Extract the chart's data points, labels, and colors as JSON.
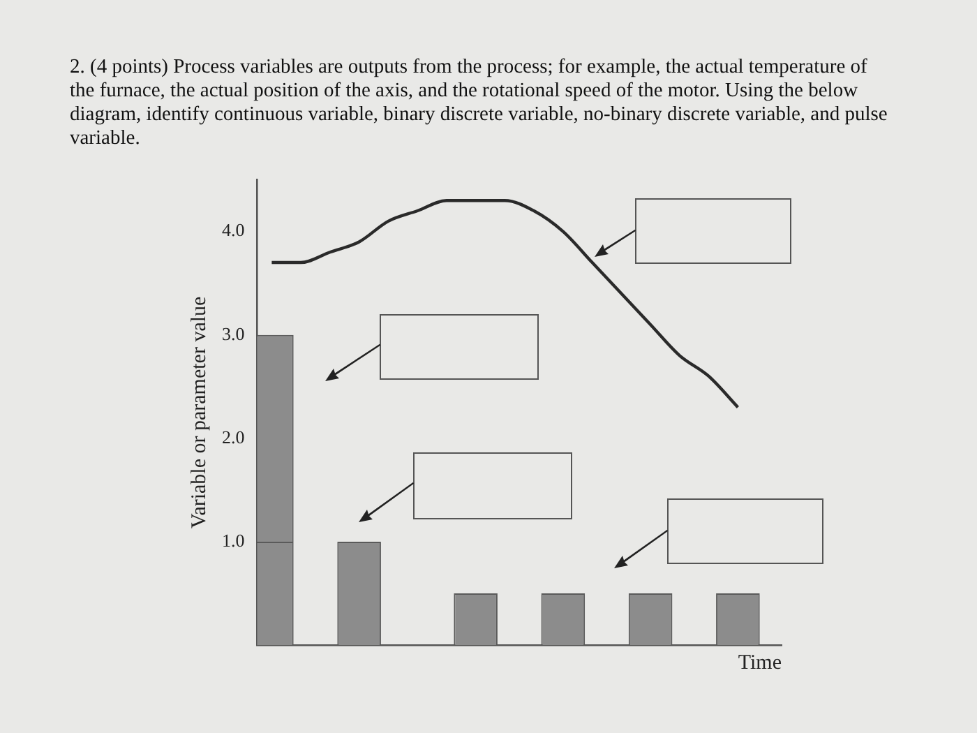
{
  "chart_data": {
    "type": "bar",
    "title": "2. (4 points) Process variables are outputs from the process; for example, the actual temperature of the furnace, the actual position of the axis, and the rotational speed of the motor. Using the below diagram, identify continuous variable, binary discrete variable, no-binary discrete variable, and pulse variable.",
    "xlabel": "Time",
    "ylabel": "Variable or parameter value",
    "categories": [
      null,
      null,
      null,
      null,
      null,
      null,
      null,
      null,
      null,
      null,
      null,
      null,
      null,
      null,
      null,
      null,
      null,
      null
    ],
    "ylim": [
      0,
      4.5
    ],
    "yticks": [
      {
        "value": 1,
        "label": "1.0"
      },
      {
        "value": 2,
        "label": "2.0"
      },
      {
        "value": 3,
        "label": "3.0"
      },
      {
        "value": 4,
        "label": "4.0"
      }
    ],
    "tick_labels": "y",
    "stacked": true,
    "grid": false,
    "legend": false,
    "series": [
      {
        "color": "#8c8c8c",
        "values": [
          1,
          null,
          null,
          1,
          null,
          null,
          null,
          0.5,
          null,
          null,
          0.5,
          null,
          null,
          0.5,
          null,
          null,
          0.5,
          null
        ]
      },
      {
        "color": "#8c8c8c",
        "values": [
          2,
          null,
          null,
          null,
          null,
          null,
          null,
          null,
          null,
          null,
          null,
          null,
          null,
          null,
          null,
          null,
          null,
          null
        ]
      },
      {
        "type": "line",
        "color": "#2a2a2a",
        "marker": "none",
        "line_style": "solid",
        "values": [
          3.7,
          3.7,
          3.8,
          3.9,
          4.1,
          4.2,
          4.3,
          4.3,
          4.3,
          4.2,
          4.0,
          3.7,
          3.4,
          3.1,
          2.8,
          2.6,
          2.3,
          null
        ]
      }
    ]
  }
}
